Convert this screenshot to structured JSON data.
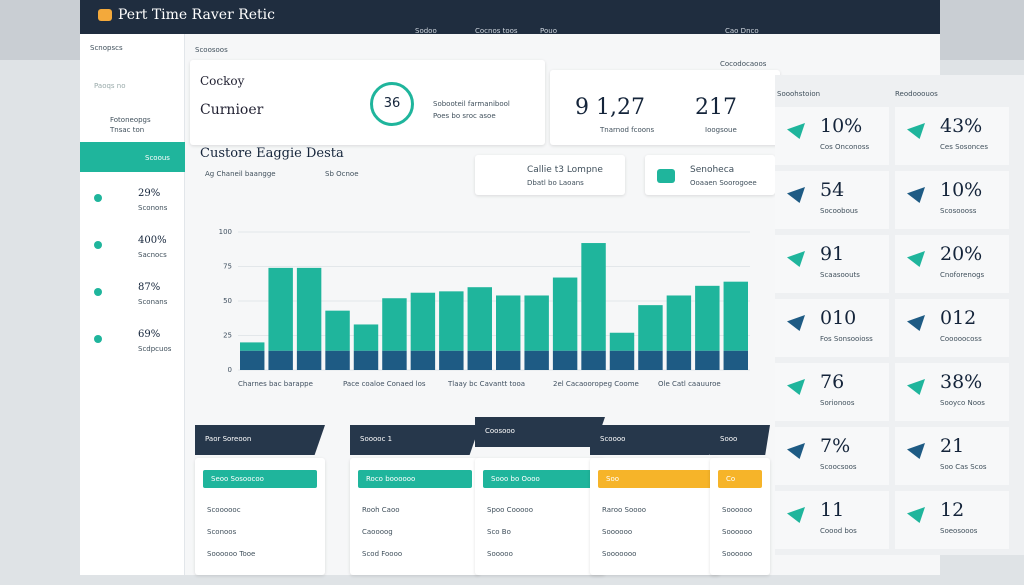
{
  "header": {
    "logo": "Pert Time Raver Retic",
    "nav": [
      "Sodoo",
      "Cocnos toos",
      "Pouo"
    ],
    "right": "Cao Dnco",
    "sub": "Cocodocaoos"
  },
  "sidebar": {
    "title": "Scnopscs",
    "sub": "Paoqs no",
    "items": [
      "Fotoneopgs",
      "Tnsac ton",
      "Scoous"
    ],
    "stats": [
      {
        "value": "29%",
        "label": "Sconons"
      },
      {
        "value": "400%",
        "label": "Sacnocs"
      },
      {
        "value": "87%",
        "label": "Sconans"
      },
      {
        "value": "69%",
        "label": "Scdpcuos"
      }
    ]
  },
  "main": {
    "tab": "Scoosoos",
    "title1": "Cockoy",
    "title2": "Curnioer",
    "ring": "36",
    "ring_label": "Sobooteil farmanibool",
    "ring_sub": "Poes bo sroc asoe",
    "big1": "9 1,27",
    "big1_label": "Tnarnod fcoons",
    "big2": "217",
    "big2_label": "Ioogsoue",
    "section": "Custore Eaggie Desta",
    "filters": [
      "Ag Chaneil baangge",
      "Sb Ocnoe"
    ],
    "card1": "Callie t3 Lompne",
    "card1_sub": "Dbatl bo Laoans",
    "card2": "Senoheca",
    "card2_sub": "Ooaaen Soorogoee"
  },
  "chart_data": {
    "type": "bar",
    "stacked": true,
    "ylim": [
      0,
      100
    ],
    "yticks": [
      0,
      25,
      50,
      75,
      100
    ],
    "series": [
      {
        "color": "#1e5b84",
        "values": [
          14,
          14,
          14,
          14,
          14,
          14,
          14,
          14,
          14,
          14,
          14,
          14,
          14,
          14,
          14,
          14,
          14,
          14
        ]
      },
      {
        "color": "#1fb59c",
        "values": [
          6,
          60,
          60,
          29,
          19,
          38,
          42,
          43,
          46,
          40,
          40,
          53,
          78,
          13,
          33,
          40,
          47,
          50
        ]
      }
    ],
    "annotations": [
      "Charnes bac barappe",
      "Pace coaloe Conaed los",
      "Tlaay bc Cavantt tooa",
      "2el Cacaooropeg Coome",
      "Ole Catl caauuroe"
    ]
  },
  "right": {
    "title1": "Sooohstoion",
    "title2": "Reodooouos",
    "stats": [
      {
        "value": "10%",
        "label": "Cos Onconoss"
      },
      {
        "value": "43%",
        "label": "Ces Sosonces"
      },
      {
        "value": "54",
        "label": "Socoobous"
      },
      {
        "value": "10%",
        "label": "Scosoooss"
      },
      {
        "value": "91",
        "label": "Scaasoouts"
      },
      {
        "value": "20%",
        "label": "Cnoforenogs"
      },
      {
        "value": "010",
        "label": "Fos Sonsooioss"
      },
      {
        "value": "012",
        "label": "Cooooocoss"
      },
      {
        "value": "76",
        "label": "Sorionoos"
      },
      {
        "value": "38%",
        "label": "Sooyco Noos"
      },
      {
        "value": "7%",
        "label": "Scoocsoos"
      },
      {
        "value": "21",
        "label": "Soo Cas Scos"
      },
      {
        "value": "11",
        "label": "Coood bos"
      },
      {
        "value": "12",
        "label": "Soeosooos"
      }
    ]
  },
  "cards": [
    {
      "title": "Paor Soreoon",
      "button": "Seoo Sosoocoo",
      "rows": [
        "Scoooooc",
        "Sconoos",
        "Soooooo Tooe"
      ]
    },
    {
      "title": "Sooooc 1",
      "button": "Roco boooooo",
      "rows": [
        "Rooh Caoo",
        "Caoooog",
        "Scod Foooo"
      ]
    },
    {
      "title": "Coosooo",
      "button": "Sooo bo Oooo",
      "rows": [
        "Spoo Cooooo",
        "Sco Bo",
        "Sooooo"
      ]
    },
    {
      "title": "Scoooo",
      "button": "Soo",
      "rows": [
        "Raroo Soooo",
        "Soooooo",
        "Sooooooo"
      ]
    },
    {
      "title": "Sooo",
      "button": "Co",
      "rows": [
        "Soooooo",
        "Soooooo",
        "Soooooo"
      ]
    }
  ]
}
